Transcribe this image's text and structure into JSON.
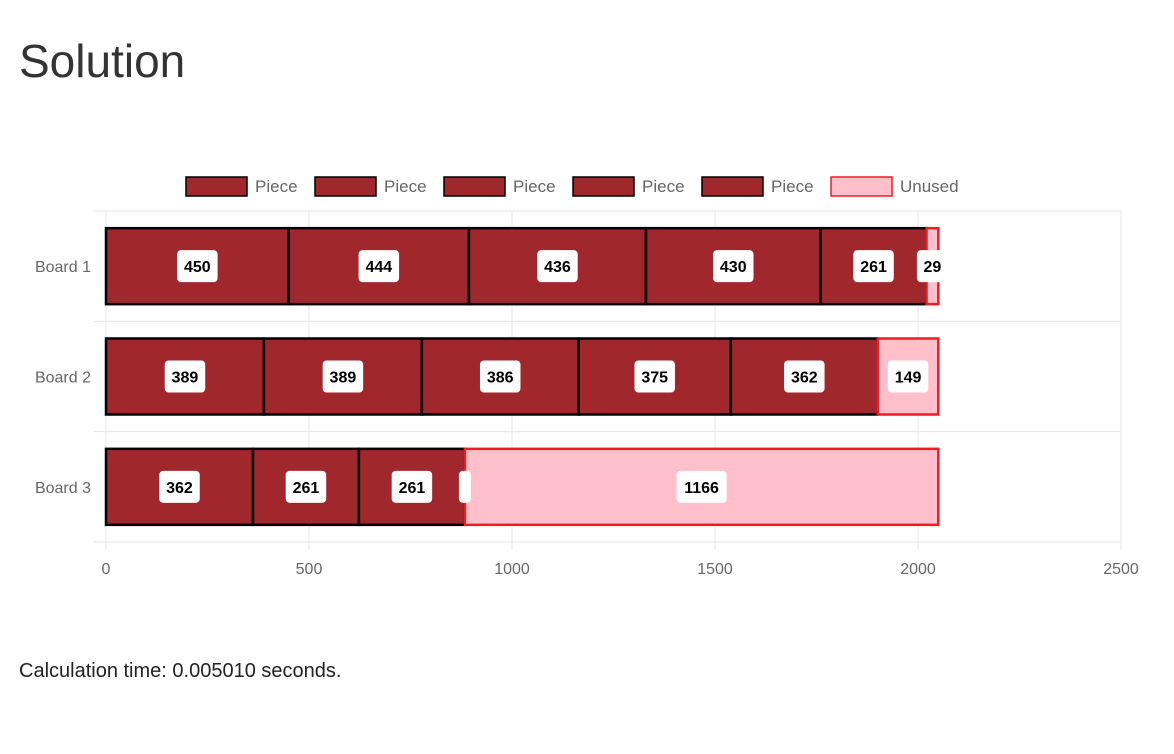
{
  "page": {
    "title": "Solution",
    "calc_prefix": "Calculation time:",
    "calc_value": "0.005010",
    "calc_suffix": "seconds."
  },
  "colors": {
    "piece_fill": "#a0282d",
    "piece_border": "#000000",
    "unused_fill": "#ffc0cb",
    "unused_border": "#ee1c25",
    "grid": "#e6e6e6",
    "label_bg": "#ffffff"
  },
  "chart_data": {
    "type": "bar",
    "orientation": "horizontal",
    "stacked": true,
    "categories": [
      "Board 1",
      "Board 2",
      "Board 3"
    ],
    "xlim": [
      0,
      2500
    ],
    "xticks": [
      0,
      500,
      1000,
      1500,
      2000,
      2500
    ],
    "grid": true,
    "legend_position": "top",
    "legend": [
      {
        "label": "Piece",
        "kind": "piece"
      },
      {
        "label": "Piece",
        "kind": "piece"
      },
      {
        "label": "Piece",
        "kind": "piece"
      },
      {
        "label": "Piece",
        "kind": "piece"
      },
      {
        "label": "Piece",
        "kind": "piece"
      },
      {
        "label": "Unused",
        "kind": "unused"
      }
    ],
    "boards": [
      {
        "name": "Board 1",
        "segments": [
          {
            "kind": "piece",
            "value": 450,
            "label": "450"
          },
          {
            "kind": "piece",
            "value": 444,
            "label": "444"
          },
          {
            "kind": "piece",
            "value": 436,
            "label": "436"
          },
          {
            "kind": "piece",
            "value": 430,
            "label": "430"
          },
          {
            "kind": "piece",
            "value": 261,
            "label": "261"
          },
          {
            "kind": "unused",
            "value": 29,
            "label": "29"
          }
        ]
      },
      {
        "name": "Board 2",
        "segments": [
          {
            "kind": "piece",
            "value": 389,
            "label": "389"
          },
          {
            "kind": "piece",
            "value": 389,
            "label": "389"
          },
          {
            "kind": "piece",
            "value": 386,
            "label": "386"
          },
          {
            "kind": "piece",
            "value": 375,
            "label": "375"
          },
          {
            "kind": "piece",
            "value": 362,
            "label": "362"
          },
          {
            "kind": "unused",
            "value": 149,
            "label": "149"
          }
        ]
      },
      {
        "name": "Board 3",
        "segments": [
          {
            "kind": "piece",
            "value": 362,
            "label": "362"
          },
          {
            "kind": "piece",
            "value": 261,
            "label": "261"
          },
          {
            "kind": "piece",
            "value": 261,
            "label": "261"
          },
          {
            "kind": "piece",
            "value": 0,
            "label": ""
          },
          {
            "kind": "unused",
            "value": 1166,
            "label": "1166"
          }
        ]
      }
    ]
  }
}
